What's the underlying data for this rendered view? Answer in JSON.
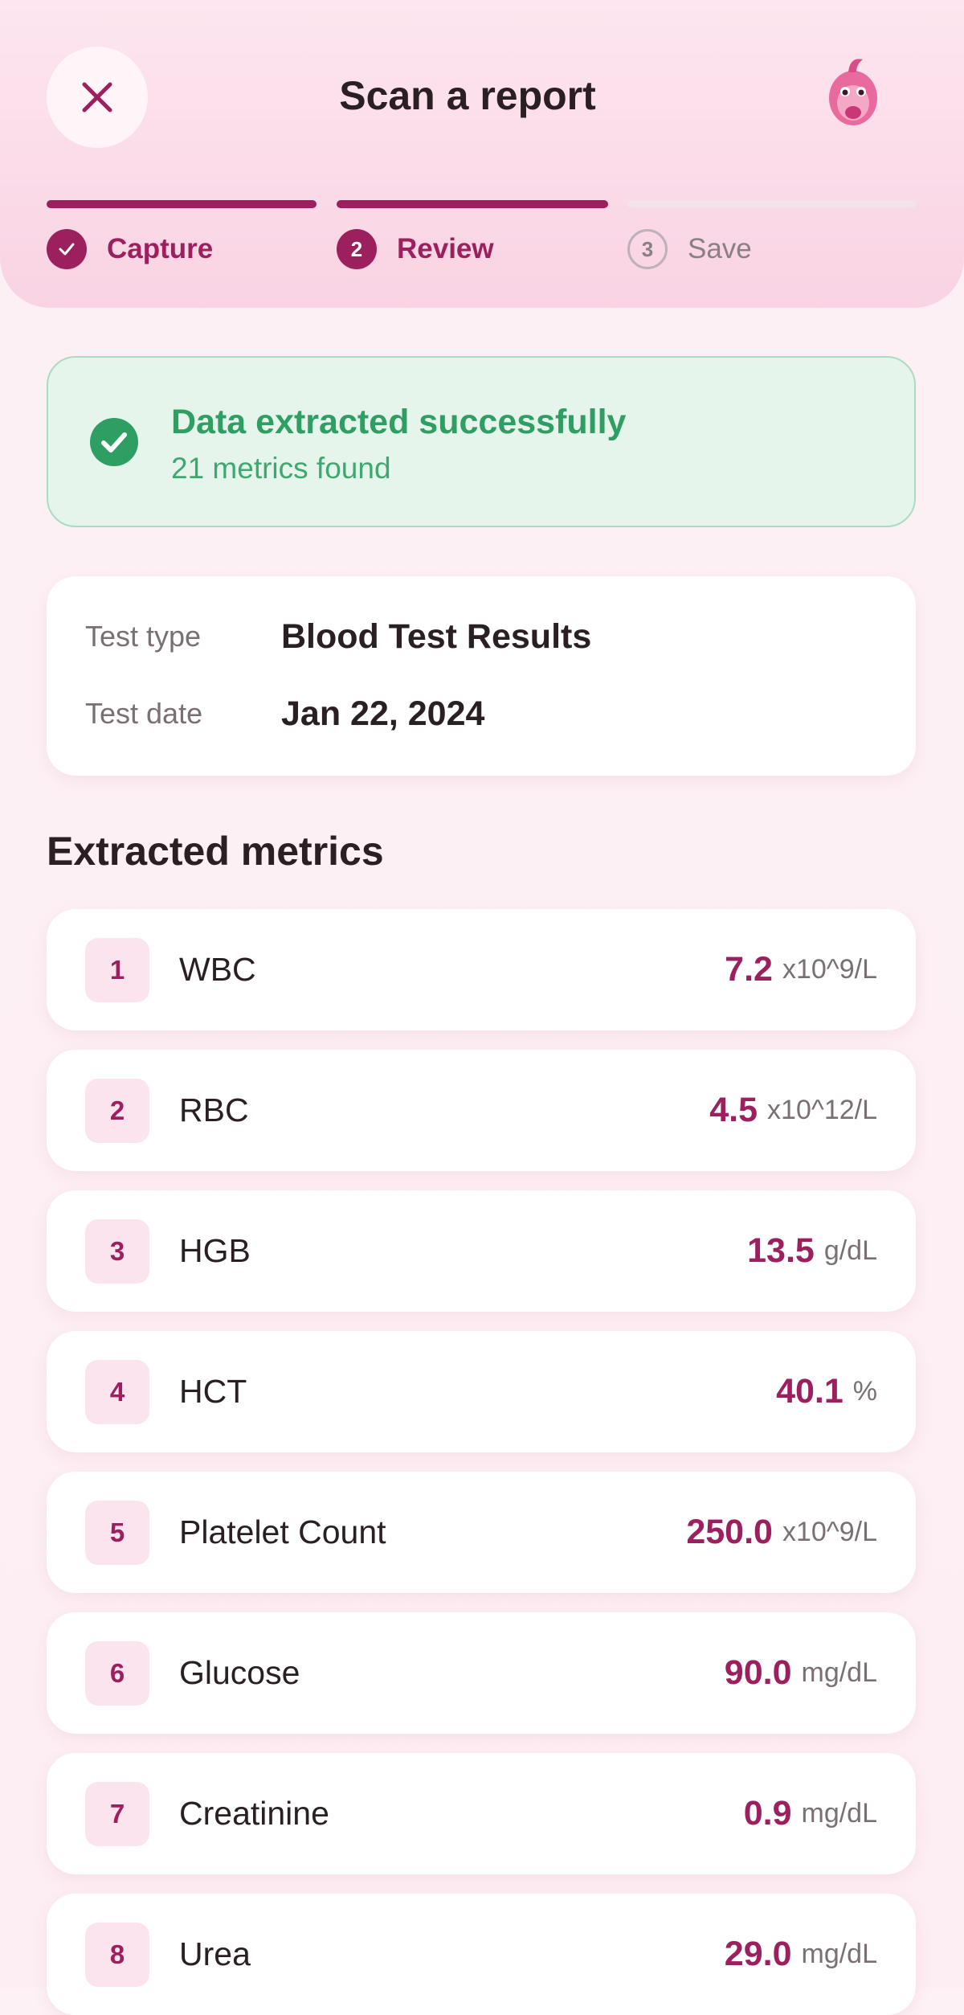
{
  "header": {
    "title": "Scan a report"
  },
  "steps": [
    {
      "label": "Capture"
    },
    {
      "number": "2",
      "label": "Review"
    },
    {
      "number": "3",
      "label": "Save"
    }
  ],
  "banner": {
    "title": "Data extracted successfully",
    "subtitle": "21 metrics found"
  },
  "test_info": {
    "rows": [
      {
        "label": "Test type",
        "value": "Blood Test Results"
      },
      {
        "label": "Test date",
        "value": "Jan 22, 2024"
      }
    ]
  },
  "metrics": {
    "title": "Extracted metrics",
    "items": [
      {
        "index": "1",
        "name": "WBC",
        "value": "7.2",
        "unit": "x10^9/L"
      },
      {
        "index": "2",
        "name": "RBC",
        "value": "4.5",
        "unit": "x10^12/L"
      },
      {
        "index": "3",
        "name": "HGB",
        "value": "13.5",
        "unit": "g/dL"
      },
      {
        "index": "4",
        "name": "HCT",
        "value": "40.1",
        "unit": "%"
      },
      {
        "index": "5",
        "name": "Platelet Count",
        "value": "250.0",
        "unit": "x10^9/L"
      },
      {
        "index": "6",
        "name": "Glucose",
        "value": "90.0",
        "unit": "mg/dL"
      },
      {
        "index": "7",
        "name": "Creatinine",
        "value": "0.9",
        "unit": "mg/dL"
      },
      {
        "index": "8",
        "name": "Urea",
        "value": "29.0",
        "unit": "mg/dL"
      }
    ]
  }
}
